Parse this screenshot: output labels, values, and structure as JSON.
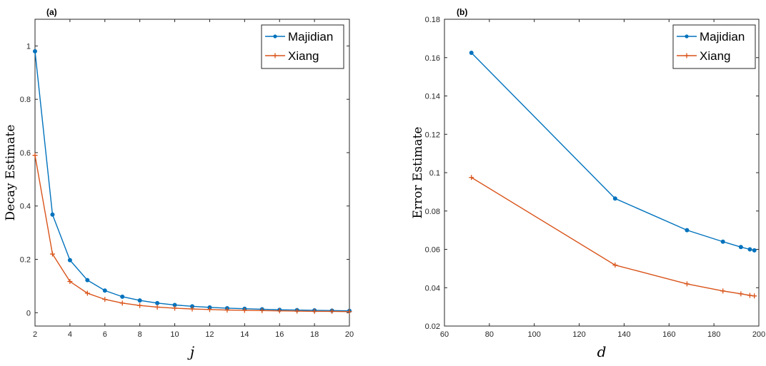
{
  "chart_data": [
    {
      "type": "line",
      "panel_label": "(a)",
      "xlabel": "j",
      "ylabel": "Decay Estimate",
      "xlim": [
        2,
        20
      ],
      "ylim": [
        -0.05,
        1.1
      ],
      "xticks": [
        2,
        4,
        6,
        8,
        10,
        12,
        14,
        16,
        18,
        20
      ],
      "yticks": [
        0,
        0.2,
        0.4,
        0.6,
        0.8,
        1
      ],
      "xtick_labels": [
        "2",
        "4",
        "6",
        "8",
        "10",
        "12",
        "14",
        "16",
        "18",
        "20"
      ],
      "ytick_labels": [
        "0",
        "0.2",
        "0.4",
        "0.6",
        "0.8",
        "1"
      ],
      "legend_position": "top-right",
      "grid": false,
      "series": [
        {
          "name": "Majidian",
          "color": "#0072BD",
          "marker": "dot",
          "x": [
            2,
            3,
            4,
            5,
            6,
            7,
            8,
            9,
            10,
            11,
            12,
            13,
            14,
            15,
            16,
            17,
            18,
            19,
            20
          ],
          "y": [
            0.98,
            0.368,
            0.197,
            0.122,
            0.083,
            0.06,
            0.046,
            0.036,
            0.029,
            0.024,
            0.02,
            0.017,
            0.015,
            0.013,
            0.011,
            0.01,
            0.009,
            0.008,
            0.007
          ]
        },
        {
          "name": "Xiang",
          "color": "#D95319",
          "marker": "plus",
          "x": [
            2,
            3,
            4,
            5,
            6,
            7,
            8,
            9,
            10,
            11,
            12,
            13,
            14,
            15,
            16,
            17,
            18,
            19,
            20
          ],
          "y": [
            0.59,
            0.22,
            0.117,
            0.073,
            0.05,
            0.036,
            0.027,
            0.021,
            0.017,
            0.014,
            0.012,
            0.01,
            0.009,
            0.008,
            0.007,
            0.006,
            0.005,
            0.005,
            0.004
          ]
        }
      ]
    },
    {
      "type": "line",
      "panel_label": "(b)",
      "xlabel": "d",
      "ylabel": "Error Estimate",
      "xlim": [
        60,
        200
      ],
      "ylim": [
        0.02,
        0.18
      ],
      "xticks": [
        60,
        80,
        100,
        120,
        140,
        160,
        180,
        200
      ],
      "yticks": [
        0.02,
        0.04,
        0.06,
        0.08,
        0.1,
        0.12,
        0.14,
        0.16,
        0.18
      ],
      "xtick_labels": [
        "60",
        "80",
        "100",
        "120",
        "140",
        "160",
        "180",
        "200"
      ],
      "ytick_labels": [
        "0.02",
        "0.04",
        "0.06",
        "0.08",
        "0.1",
        "0.12",
        "0.14",
        "0.16",
        "0.18"
      ],
      "legend_position": "top-right",
      "grid": false,
      "series": [
        {
          "name": "Majidian",
          "color": "#0072BD",
          "marker": "dot",
          "x": [
            72,
            136,
            168,
            184,
            192,
            196,
            198
          ],
          "y": [
            0.1625,
            0.0865,
            0.07,
            0.064,
            0.0612,
            0.06,
            0.0595
          ]
        },
        {
          "name": "Xiang",
          "color": "#D95319",
          "marker": "plus",
          "x": [
            72,
            136,
            168,
            184,
            192,
            196,
            198
          ],
          "y": [
            0.0975,
            0.0518,
            0.042,
            0.0383,
            0.0368,
            0.036,
            0.0357
          ]
        }
      ]
    }
  ]
}
